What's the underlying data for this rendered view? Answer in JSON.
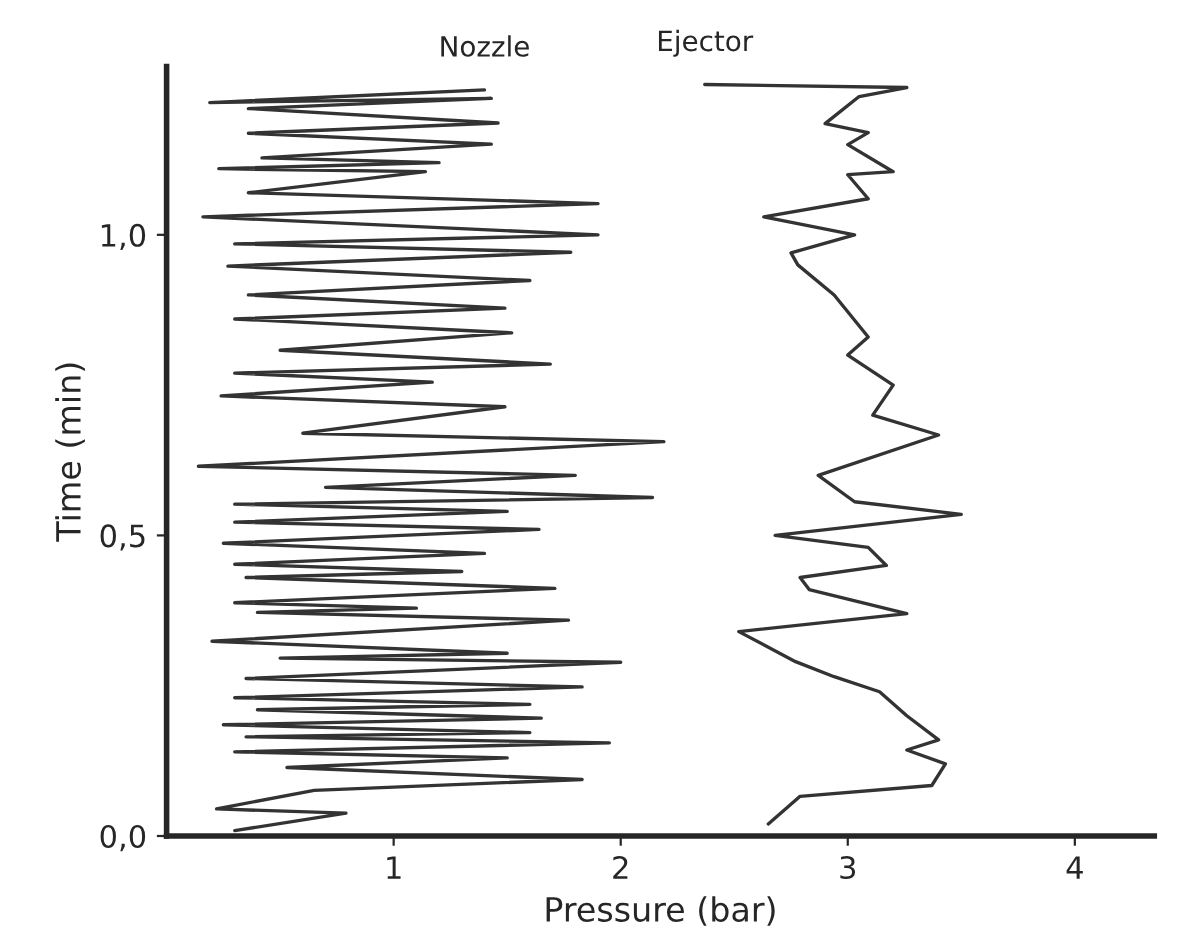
{
  "chart_data": {
    "type": "line",
    "xlabel": "Pressure (bar)",
    "ylabel": "Time (min)",
    "xlim": [
      0,
      4.35
    ],
    "ylim": [
      0,
      1.28
    ],
    "xticks": [
      1,
      2,
      3,
      4
    ],
    "yticks": [
      {
        "value": 0,
        "label": "0,0"
      },
      {
        "value": 0.5,
        "label": "0,5"
      },
      {
        "value": 1,
        "label": "1,0"
      }
    ],
    "grid": false,
    "legend": false,
    "marker": "none",
    "line_style": "solid",
    "series": [
      {
        "name": "Nozzle",
        "color": "#333333",
        "x": [
          0.3,
          0.79,
          0.22,
          0.65,
          1.83,
          0.53,
          1.5,
          0.3,
          1.95,
          0.35,
          1.6,
          0.25,
          1.65,
          0.4,
          1.6,
          0.3,
          1.83,
          0.35,
          2.0,
          0.5,
          1.5,
          0.2,
          1.77,
          0.4,
          1.1,
          0.3,
          1.71,
          0.35,
          1.3,
          0.3,
          1.4,
          0.25,
          1.64,
          0.3,
          1.5,
          0.3,
          2.14,
          0.7,
          1.8,
          0.14,
          2.19,
          0.6,
          1.49,
          0.24,
          1.17,
          0.3,
          1.69,
          0.5,
          1.52,
          0.3,
          1.49,
          0.36,
          1.6,
          0.27,
          1.78,
          0.3,
          1.9,
          0.16,
          1.9,
          0.36,
          1.14,
          0.23,
          1.2,
          0.42,
          1.43,
          0.36,
          1.46,
          0.36,
          1.43,
          0.19,
          1.4
        ],
        "values": [
          0.009,
          0.038,
          0.045,
          0.076,
          0.094,
          0.114,
          0.13,
          0.14,
          0.155,
          0.165,
          0.172,
          0.185,
          0.196,
          0.21,
          0.219,
          0.23,
          0.248,
          0.262,
          0.289,
          0.296,
          0.304,
          0.324,
          0.359,
          0.372,
          0.379,
          0.388,
          0.412,
          0.43,
          0.44,
          0.452,
          0.47,
          0.487,
          0.51,
          0.522,
          0.54,
          0.552,
          0.563,
          0.58,
          0.6,
          0.615,
          0.656,
          0.67,
          0.714,
          0.732,
          0.755,
          0.77,
          0.785,
          0.808,
          0.837,
          0.86,
          0.878,
          0.9,
          0.924,
          0.948,
          0.971,
          0.985,
          1.0,
          1.03,
          1.052,
          1.07,
          1.105,
          1.11,
          1.12,
          1.128,
          1.151,
          1.169,
          1.186,
          1.21,
          1.227,
          1.22,
          1.241
        ]
      },
      {
        "name": "Ejector",
        "color": "#333333",
        "x": [
          2.65,
          2.79,
          3.37,
          3.43,
          3.26,
          3.4,
          3.26,
          3.14,
          2.94,
          2.77,
          2.52,
          3.26,
          2.83,
          2.79,
          3.17,
          3.09,
          2.68,
          3.5,
          3.03,
          2.87,
          3.4,
          3.11,
          3.2,
          3.0,
          3.09,
          2.94,
          2.78,
          2.75,
          3.03,
          2.63,
          3.09,
          3.0,
          3.2,
          3.0,
          3.09,
          2.9,
          3.05,
          3.26,
          2.37
        ],
        "values": [
          0.02,
          0.066,
          0.084,
          0.12,
          0.143,
          0.16,
          0.2,
          0.24,
          0.265,
          0.29,
          0.34,
          0.37,
          0.41,
          0.43,
          0.45,
          0.48,
          0.5,
          0.535,
          0.556,
          0.6,
          0.667,
          0.7,
          0.75,
          0.8,
          0.83,
          0.9,
          0.95,
          0.97,
          1.0,
          1.03,
          1.06,
          1.1,
          1.105,
          1.15,
          1.17,
          1.185,
          1.23,
          1.245,
          1.25
        ]
      }
    ]
  }
}
